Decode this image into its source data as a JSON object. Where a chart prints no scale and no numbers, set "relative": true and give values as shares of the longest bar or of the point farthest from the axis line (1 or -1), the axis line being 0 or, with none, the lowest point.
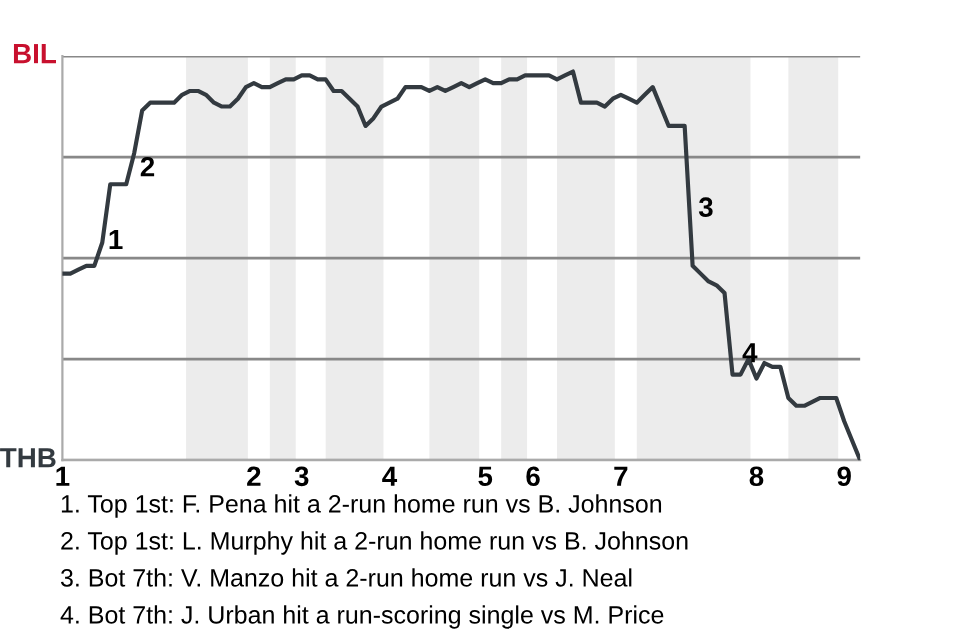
{
  "chart_data": {
    "type": "line",
    "relative": true,
    "categories": [
      "1",
      null,
      null,
      null,
      null,
      null,
      null,
      null,
      null,
      null,
      null,
      null,
      null,
      null,
      null,
      null,
      null,
      null,
      null,
      null,
      null,
      null,
      null,
      null,
      "2",
      null,
      null,
      null,
      null,
      null,
      "3",
      null,
      null,
      null,
      null,
      null,
      null,
      null,
      null,
      null,
      null,
      "4",
      null,
      null,
      null,
      null,
      null,
      null,
      null,
      null,
      null,
      null,
      null,
      "5",
      null,
      null,
      null,
      null,
      null,
      "6",
      null,
      null,
      null,
      null,
      null,
      null,
      null,
      null,
      null,
      null,
      "7",
      null,
      null,
      null,
      null,
      null,
      null,
      null,
      null,
      null,
      null,
      null,
      null,
      null,
      null,
      null,
      null,
      "8",
      null,
      null,
      null,
      null,
      null,
      null,
      null,
      null,
      null,
      null,
      "9",
      null,
      null
    ],
    "series": [
      {
        "color": "#333a40",
        "values": [
          0.48,
          0.48,
          0.49,
          0.5,
          0.5,
          0.56,
          0.71,
          0.71,
          0.71,
          0.79,
          0.9,
          0.92,
          0.92,
          0.92,
          0.92,
          0.94,
          0.95,
          0.95,
          0.94,
          0.92,
          0.91,
          0.91,
          0.93,
          0.96,
          0.97,
          0.96,
          0.96,
          0.97,
          0.98,
          0.98,
          0.99,
          0.99,
          0.98,
          0.98,
          0.95,
          0.95,
          0.93,
          0.91,
          0.86,
          0.88,
          0.91,
          0.92,
          0.93,
          0.96,
          0.96,
          0.96,
          0.95,
          0.96,
          0.95,
          0.96,
          0.97,
          0.96,
          0.97,
          0.98,
          0.97,
          0.97,
          0.98,
          0.98,
          0.99,
          0.99,
          0.99,
          0.99,
          0.98,
          0.99,
          1,
          0.92,
          0.92,
          0.92,
          0.91,
          0.93,
          0.94,
          0.93,
          0.92,
          0.94,
          0.96,
          0.91,
          0.86,
          0.86,
          0.86,
          0.5,
          0.48,
          0.46,
          0.45,
          0.43,
          0.22,
          0.22,
          0.26,
          0.21,
          0.25,
          0.24,
          0.24,
          0.16,
          0.14,
          0.14,
          0.15,
          0.16,
          0.16,
          0.16,
          0.1,
          0.05,
          0
        ]
      }
    ],
    "grid": "y",
    "annotations": [
      "BIL",
      "THB",
      "1",
      "2",
      "3",
      "4",
      "1. Top 1st: F. Pena hit a 2-run home run vs B. Johnson",
      "2. Top 1st: L. Murphy hit a 2-run home run vs B. Johnson",
      "3. Bot 7th: V. Manzo hit a 2-run home run vs J. Neal",
      "4. Bot 7th: J. Urban hit a run-scoring single vs M. Price"
    ],
    "line_style": "solid",
    "marker": "none"
  }
}
